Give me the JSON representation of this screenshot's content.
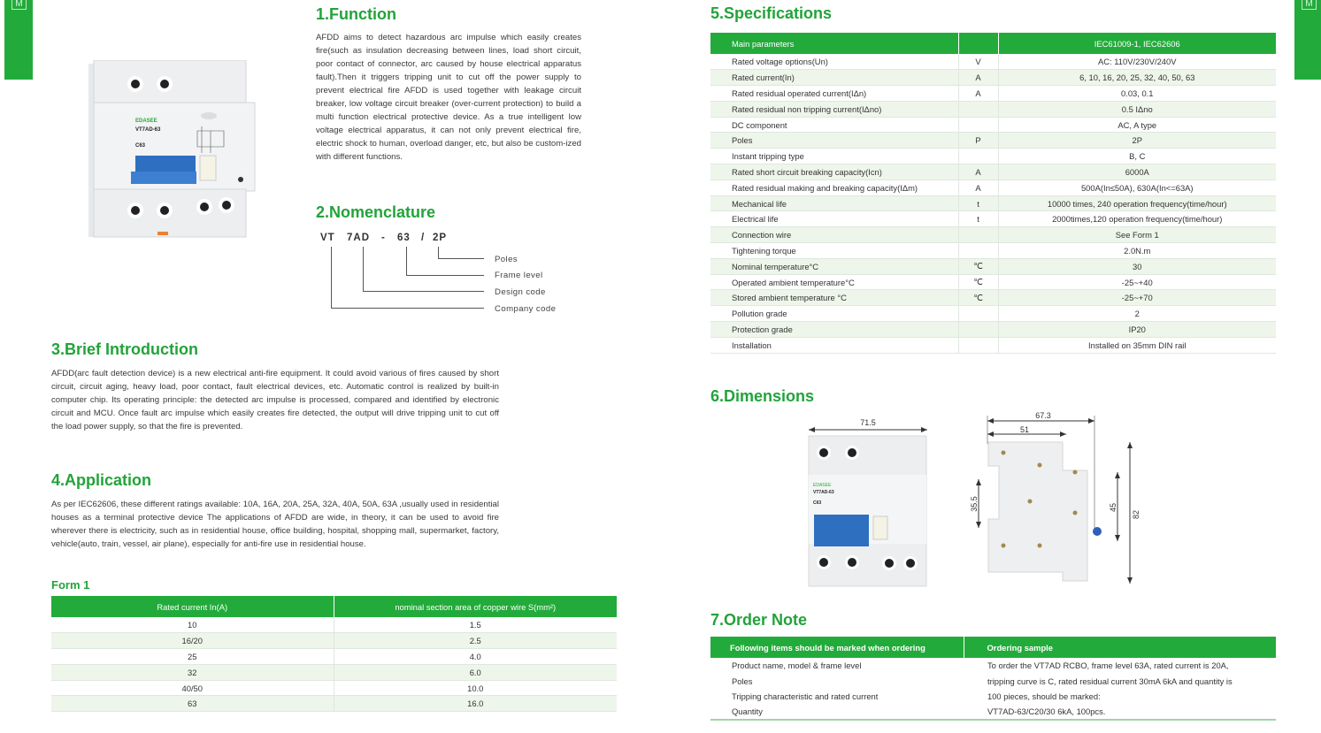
{
  "side_tab_letter": "M",
  "function": {
    "title": "1.Function",
    "text": "AFDD aims to detect hazardous arc impulse which easily creates fire(such as insulation decreasing between lines, load short circuit, poor contact of connector, arc caused by house electrical apparatus fault).Then it triggers tripping unit to cut off the power supply to prevent electrical fire AFDD is used together with leakage circuit breaker, low voltage circuit breaker (over-current protection) to build a multi function electrical protective device. As a true intelligent low voltage electrical apparatus, it can not only prevent electrical fire, electric shock to human, overload danger, etc, but also be custom-ized with different functions."
  },
  "product": {
    "brand": "EDASEE",
    "model": "VT7AD-63",
    "rating": "C63"
  },
  "nomenclature": {
    "title": "2.Nomenclature",
    "code": [
      "VT",
      "7AD",
      "-",
      "63",
      "/",
      "2P"
    ],
    "labels": [
      "Poles",
      "Frame level",
      "Design code",
      "Company code"
    ]
  },
  "intro": {
    "title": "3.Brief Introduction",
    "text": "AFDD(arc fault detection device) is a new electrical anti-fire equipment. It could avoid various of fires caused by short circuit, circuit aging, heavy load, poor contact, fault electrical devices, etc. Automatic control is realized by built-in computer chip. Its operating principle: the detected arc impulse is processed, compared and identified by electronic circuit and MCU. Once fault arc impulse which easily creates fire detected, the output will drive tripping unit to cut off the load power supply, so that the fire is prevented."
  },
  "application": {
    "title": "4.Application",
    "text": "As per IEC62606, these different ratings available: 10A, 16A, 20A, 25A, 32A, 40A, 50A, 63A ,usually used in residential houses as a terminal protective device The applications of AFDD are wide, in theory, it can be used to avoid fire wherever there is electricity, such as in residential house, office building, hospital, shopping mall, supermarket, factory, vehicle(auto, train, vessel, air plane), especially for anti-fire use in residential house."
  },
  "form1": {
    "title": "Form 1",
    "headers": [
      "Rated current In(A)",
      "nominal section area of copper wire S(mm²)"
    ],
    "rows": [
      [
        "10",
        "1.5"
      ],
      [
        "16/20",
        "2.5"
      ],
      [
        "25",
        "4.0"
      ],
      [
        "32",
        "6.0"
      ],
      [
        "40/50",
        "10.0"
      ],
      [
        "63",
        "16.0"
      ]
    ]
  },
  "specs": {
    "title": "5.Specifications",
    "headers": [
      "Main parameters",
      "",
      "IEC61009-1, IEC62606"
    ],
    "rows": [
      [
        "Rated voltage options(Un)",
        "V",
        "AC: 110V/230V/240V"
      ],
      [
        "Rated current(In)",
        "A",
        "6, 10, 16, 20, 25, 32, 40, 50, 63"
      ],
      [
        "Rated residual operated current(IΔn)",
        "A",
        "0.03, 0.1"
      ],
      [
        "Rated residual non tripping current(IΔno)",
        "",
        "0.5 IΔno"
      ],
      [
        "DC component",
        "",
        "AC, A type"
      ],
      [
        "Poles",
        "P",
        "2P"
      ],
      [
        "Instant tripping type",
        "",
        "B, C"
      ],
      [
        "Rated short circuit breaking capacity(Icn)",
        "A",
        "6000A"
      ],
      [
        "Rated residual making and breaking capacity(IΔm)",
        "A",
        "500A(In≤50A), 630A(In<=63A)"
      ],
      [
        "Mechanical life",
        "t",
        "10000 times, 240 operation frequency(time/hour)"
      ],
      [
        "Electrical life",
        "t",
        "2000times,120 operation frequency(time/hour)"
      ],
      [
        "Connection wire",
        "",
        "See Form 1"
      ],
      [
        "Tightening torque",
        "",
        "2.0N.m"
      ],
      [
        "Nominal temperature°C",
        "℃",
        "30"
      ],
      [
        "Operated ambient temperature°C",
        "℃",
        "-25~+40"
      ],
      [
        "Stored ambient temperature °C",
        "℃",
        "-25~+70"
      ],
      [
        "Pollution grade",
        "",
        "2"
      ],
      [
        "Protection grade",
        "",
        "IP20"
      ],
      [
        "Installation",
        "",
        "Installed on 35mm DIN rail"
      ]
    ]
  },
  "dimensions": {
    "title": "6.Dimensions",
    "front_width": "71.5",
    "side_total": "67.3",
    "side_depth": "51",
    "h1": "35.5",
    "h2": "45",
    "h3": "82"
  },
  "order": {
    "title": "7.Order Note",
    "headers": [
      "Following items should be marked when ordering",
      "Ordering sample"
    ],
    "rows": [
      [
        "Product name, model & frame level",
        "To order the VT7AD RCBO, frame level 63A, rated current is 20A,"
      ],
      [
        "Poles",
        "tripping curve is C, rated residual current 30mA 6kA and quantity is"
      ],
      [
        "Tripping characteristic and rated current",
        "100 pieces, should be marked:"
      ],
      [
        "Quantity",
        "VT7AD-63/C20/30 6kA, 100pcs."
      ]
    ]
  },
  "colors": {
    "accent": "#22ab3a",
    "stripe": "#eef5ea"
  }
}
